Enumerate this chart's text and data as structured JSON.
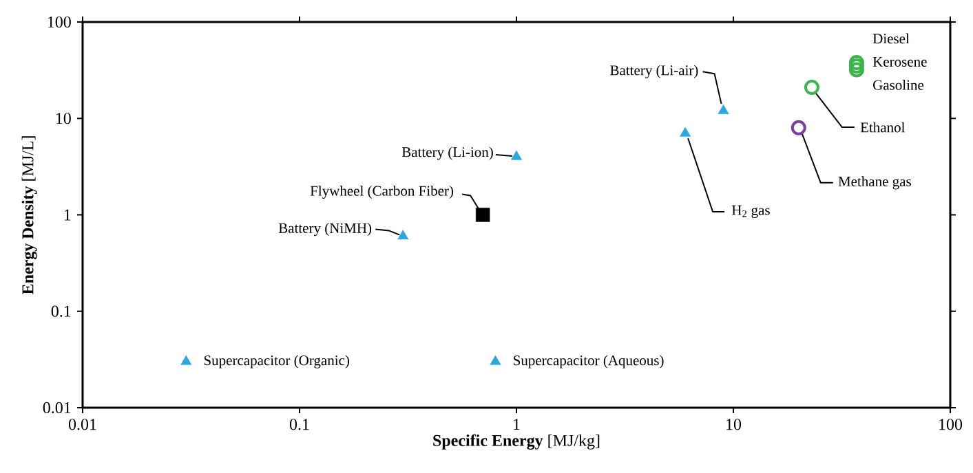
{
  "chart_data": {
    "type": "scatter",
    "xlabel": "**Specific Energy** [MJ/kg]",
    "ylabel": "**Energy Density** [MJ/L]",
    "log": "xy",
    "xlim": [
      0.01,
      100
    ],
    "ylim": [
      0.01,
      100
    ],
    "xticks": [
      0.01,
      0.1,
      1,
      10,
      100
    ],
    "yticks": [
      0.01,
      0.1,
      1,
      10,
      100
    ],
    "series": [
      {
        "color": "#29a8e0",
        "marker": "triangle",
        "x": [
          0.03,
          0.8,
          0.3,
          1,
          6,
          9
        ],
        "values": [
          0.03,
          0.03,
          0.6,
          4,
          7,
          12
        ]
      },
      {
        "color": "#000000",
        "marker": "square",
        "x": [
          0.7
        ],
        "values": [
          1
        ]
      },
      {
        "color": "#7b3fa0",
        "marker": "circle",
        "x": [
          20
        ],
        "values": [
          8
        ]
      },
      {
        "color": "#3cb44b",
        "marker": "circle",
        "x": [
          23,
          37,
          37,
          37
        ],
        "values": [
          21,
          38,
          35,
          32
        ]
      }
    ],
    "annotations": [
      {
        "text": "Supercapacitor (Organic)",
        "x": 0.03,
        "y": 0.03
      },
      {
        "text": "Supercapacitor (Aqueous)",
        "x": 0.8,
        "y": 0.03
      },
      {
        "text": "Battery  (NiMH)",
        "x": 0.3,
        "y": 0.6
      },
      {
        "text": "Flywheel (Carbon Fiber)",
        "x": 0.7,
        "y": 1
      },
      {
        "text": "Battery (Li-ion)",
        "x": 1,
        "y": 4
      },
      {
        "text": "H$_{2}$ gas",
        "x": 6,
        "y": 7
      },
      {
        "text": "Battery (Li-air)",
        "x": 9,
        "y": 12
      },
      {
        "text": "Methane gas",
        "x": 20,
        "y": 8
      },
      {
        "text": "Ethanol",
        "x": 23,
        "y": 21
      },
      {
        "text": "Diesel",
        "x": 37,
        "y": 38
      },
      {
        "text": "Kerosene",
        "x": 37,
        "y": 35
      },
      {
        "text": "Gasoline",
        "x": 37,
        "y": 32
      }
    ]
  }
}
